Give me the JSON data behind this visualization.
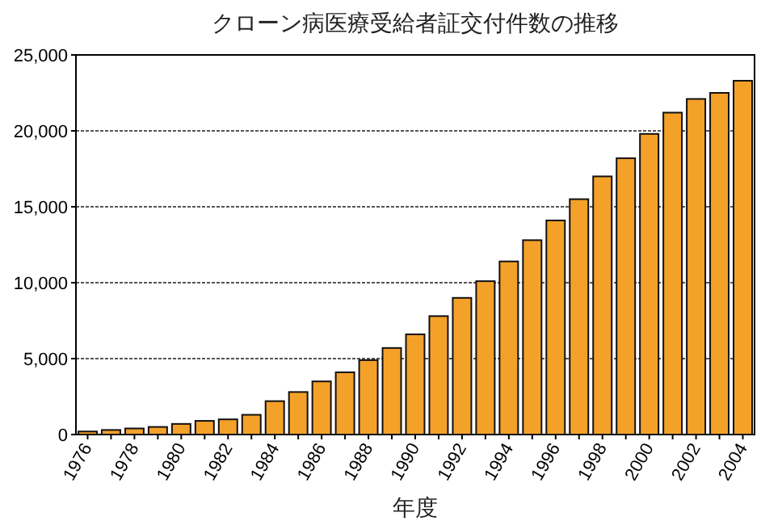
{
  "chart_data": {
    "type": "bar",
    "title": "クローン病医療受給者証交付件数の推移",
    "xlabel": "年度",
    "categories": [
      "1976",
      null,
      "1978",
      null,
      "1980",
      null,
      "1982",
      null,
      "1984",
      null,
      "1986",
      null,
      "1988",
      null,
      "1990",
      null,
      "1992",
      null,
      "1994",
      null,
      "1996",
      null,
      "1998",
      null,
      "2000",
      null,
      "2002",
      null,
      "2004"
    ],
    "values": [
      200,
      300,
      400,
      500,
      700,
      900,
      1000,
      1300,
      2200,
      2800,
      3500,
      4100,
      4900,
      5700,
      6600,
      7800,
      9000,
      10100,
      11400,
      12800,
      14100,
      15500,
      17000,
      18200,
      19800,
      21200,
      22100,
      22500,
      23300
    ],
    "color": "#f4a12a",
    "ylim": [
      0,
      25000
    ],
    "yticks": [
      {
        "value": 0,
        "label": "0"
      },
      {
        "value": 5000,
        "label": "5,000"
      },
      {
        "value": 10000,
        "label": "10,000"
      },
      {
        "value": 15000,
        "label": "15,000"
      },
      {
        "value": 20000,
        "label": "20,000"
      },
      {
        "value": 25000,
        "label": "25,000"
      }
    ],
    "grid": "y"
  }
}
